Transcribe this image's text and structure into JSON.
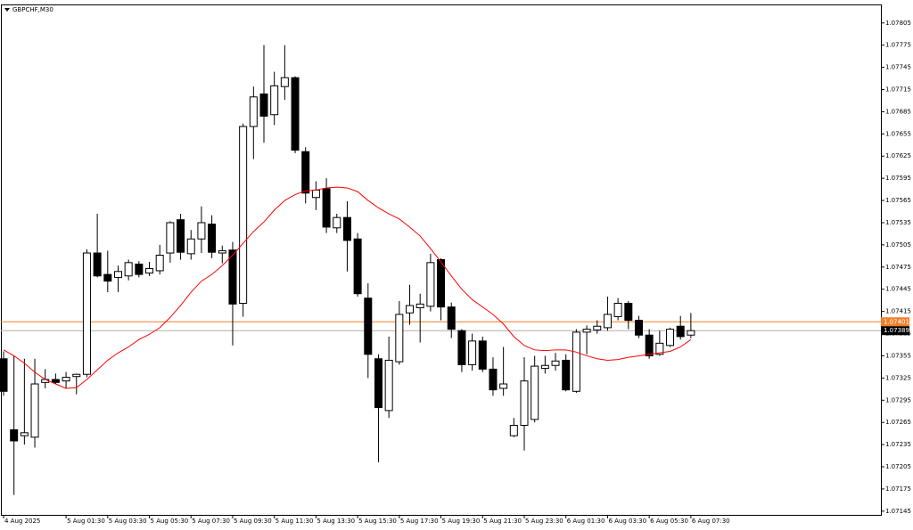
{
  "chart_data": {
    "type": "candlestick",
    "title": "GBPCHF,M30",
    "categories": [
      "4 Aug 2025",
      null,
      null,
      null,
      null,
      null,
      "5 Aug 01:30",
      null,
      null,
      null,
      "5 Aug 03:30",
      null,
      null,
      null,
      "5 Aug 05:30",
      null,
      null,
      null,
      "5 Aug 07:30",
      null,
      null,
      null,
      "5 Aug 09:30",
      null,
      null,
      null,
      "5 Aug 11:30",
      null,
      null,
      null,
      "5 Aug 13:30",
      null,
      null,
      null,
      "5 Aug 15:30",
      null,
      null,
      null,
      "5 Aug 17:30",
      null,
      null,
      null,
      "5 Aug 19:30",
      null,
      null,
      null,
      "5 Aug 21:30",
      null,
      null,
      null,
      "5 Aug 23:30",
      null,
      null,
      null,
      "6 Aug 01:30",
      null,
      null,
      null,
      "6 Aug 03:30",
      null,
      null,
      null,
      "6 Aug 05:30",
      null,
      null,
      null,
      "6 Aug 07:30"
    ],
    "open": [
      1.07351,
      1.07255,
      1.07247,
      1.07245,
      1.07319,
      1.07323,
      1.07321,
      1.07327,
      1.0733,
      1.07494,
      1.07465,
      1.07461,
      1.07463,
      1.07479,
      1.07467,
      1.0747,
      1.07494,
      1.07539,
      1.07493,
      1.07513,
      1.07533,
      1.07494,
      1.07498,
      1.07426,
      1.07665,
      1.07709,
      1.07681,
      1.07719,
      1.07731,
      1.07631,
      1.07569,
      1.07581,
      1.07528,
      1.07542,
      1.07513,
      1.07433,
      1.07351,
      1.07281,
      1.07347,
      1.07413,
      1.0742,
      1.07422,
      1.07485,
      1.07421,
      1.07389,
      1.07343,
      1.07375,
      1.07337,
      1.07311,
      1.07247,
      1.07261,
      1.07269,
      1.07338,
      1.07342,
      1.07349,
      1.07307,
      1.07387,
      1.0739,
      1.07393,
      1.07408,
      1.07426,
      1.07403,
      1.07383,
      1.07357,
      1.07369,
      1.07395,
      1.07383
    ],
    "high": [
      1.07361,
      1.07355,
      1.07351,
      1.07351,
      1.07337,
      1.07331,
      1.07333,
      1.07331,
      1.07499,
      1.07547,
      1.07497,
      1.07477,
      1.07485,
      1.07483,
      1.07482,
      1.07505,
      1.07537,
      1.07547,
      1.07525,
      1.07557,
      1.07545,
      1.07504,
      1.07509,
      1.07669,
      1.07719,
      1.07775,
      1.07739,
      1.07775,
      1.07733,
      1.07637,
      1.07591,
      1.07595,
      1.07547,
      1.07564,
      1.07521,
      1.07453,
      1.07357,
      1.07381,
      1.07429,
      1.07451,
      1.07439,
      1.07493,
      1.07487,
      1.07427,
      1.07391,
      1.07385,
      1.07381,
      1.07353,
      1.07367,
      1.07271,
      1.07353,
      1.07355,
      1.07355,
      1.07359,
      1.07357,
      1.07391,
      1.07396,
      1.07403,
      1.07435,
      1.07433,
      1.07429,
      1.07409,
      1.07391,
      1.07389,
      1.07393,
      1.07409,
      1.07413
    ],
    "low": [
      1.07301,
      1.07167,
      1.07235,
      1.07231,
      1.07311,
      1.07317,
      1.07311,
      1.07303,
      1.07326,
      1.07461,
      1.07441,
      1.07441,
      1.07457,
      1.07461,
      1.07463,
      1.07465,
      1.07481,
      1.07485,
      1.07485,
      1.07494,
      1.07487,
      1.0748,
      1.07369,
      1.07408,
      1.07621,
      1.07643,
      1.07667,
      1.07701,
      1.07629,
      1.07561,
      1.07552,
      1.07521,
      1.07521,
      1.07469,
      1.07435,
      1.07325,
      1.07211,
      1.07271,
      1.07343,
      1.07397,
      1.07373,
      1.07415,
      1.07403,
      1.07379,
      1.07333,
      1.07335,
      1.07333,
      1.07301,
      1.07301,
      1.07245,
      1.07227,
      1.07265,
      1.07331,
      1.07335,
      1.07307,
      1.07305,
      1.07357,
      1.07385,
      1.07389,
      1.07403,
      1.07391,
      1.07379,
      1.07351,
      1.07355,
      1.07367,
      1.07377,
      1.07379
    ],
    "close": [
      1.07307,
      1.0724,
      1.07251,
      1.07317,
      1.07323,
      1.07319,
      1.07326,
      1.0733,
      1.07494,
      1.07463,
      1.07456,
      1.07469,
      1.07481,
      1.07465,
      1.07473,
      1.07491,
      1.07535,
      1.07495,
      1.07513,
      1.07535,
      1.07495,
      1.07497,
      1.07425,
      1.07665,
      1.07705,
      1.07679,
      1.0772,
      1.07731,
      1.07633,
      1.07575,
      1.07579,
      1.07529,
      1.07542,
      1.07511,
      1.07439,
      1.07357,
      1.07285,
      1.07349,
      1.07411,
      1.07423,
      1.07425,
      1.07481,
      1.07421,
      1.07391,
      1.07343,
      1.07375,
      1.07337,
      1.07309,
      1.07317,
      1.07261,
      1.07321,
      1.07341,
      1.07342,
      1.07348,
      1.07309,
      1.07387,
      1.07391,
      1.07395,
      1.07411,
      1.07426,
      1.07403,
      1.07383,
      1.07355,
      1.07372,
      1.07391,
      1.07381,
      1.07389
    ],
    "moving_average": {
      "color": "#ff0000",
      "values": [
        1.07363,
        1.07355,
        1.07345,
        1.07333,
        1.07323,
        1.07317,
        1.07311,
        1.07312,
        1.07323,
        1.07336,
        1.07349,
        1.07359,
        1.07367,
        1.07377,
        1.07384,
        1.07393,
        1.07407,
        1.07423,
        1.07441,
        1.07456,
        1.07465,
        1.07477,
        1.07491,
        1.07507,
        1.07523,
        1.07536,
        1.07552,
        1.07565,
        1.07573,
        1.07578,
        1.07579,
        1.07582,
        1.07583,
        1.07582,
        1.07577,
        1.07565,
        1.07555,
        1.07547,
        1.0754,
        1.07529,
        1.07517,
        1.075,
        1.07482,
        1.07463,
        1.07445,
        1.07431,
        1.07421,
        1.07411,
        1.07398,
        1.07381,
        1.07369,
        1.07363,
        1.07362,
        1.07363,
        1.07363,
        1.0736,
        1.07355,
        1.07351,
        1.07349,
        1.0735,
        1.07353,
        1.07355,
        1.07357,
        1.07359,
        1.07361,
        1.07367,
        1.07377
      ]
    },
    "price_lines": [
      {
        "value": 1.07401,
        "color": "#f07f2a"
      },
      {
        "value": 1.07389,
        "color": "#b0b0b0"
      }
    ],
    "ylim": [
      1.0714,
      1.0783
    ],
    "yticks": [
      1.07805,
      1.07775,
      1.07745,
      1.07715,
      1.07685,
      1.07655,
      1.07625,
      1.07595,
      1.07565,
      1.07535,
      1.07505,
      1.07475,
      1.07445,
      1.07415,
      1.07385,
      1.07355,
      1.07325,
      1.07295,
      1.07265,
      1.07235,
      1.07205,
      1.07175,
      1.07145
    ]
  }
}
